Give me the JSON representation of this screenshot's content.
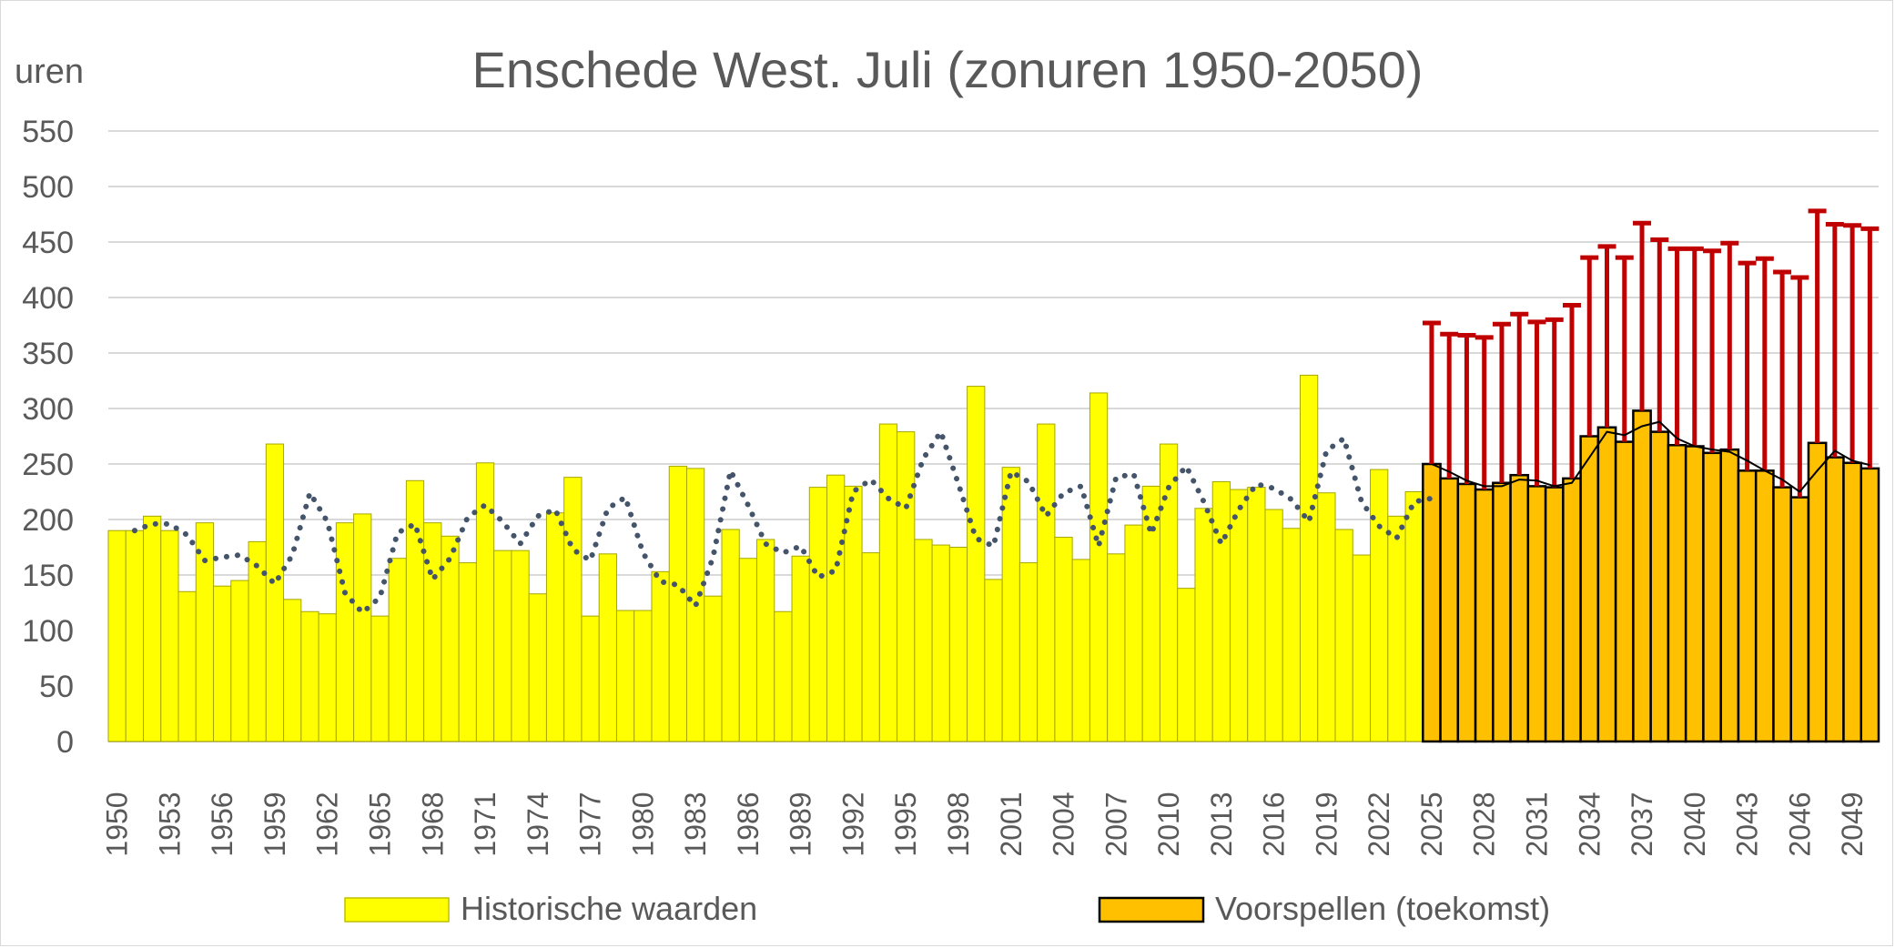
{
  "chart_data": {
    "type": "bar",
    "title": "Enschede West. Juli (zonuren 1950-2050)",
    "ylabel": "uren",
    "xlabel": "",
    "ylim": [
      0,
      550
    ],
    "yticks": [
      0,
      50,
      100,
      150,
      200,
      250,
      300,
      350,
      400,
      450,
      500,
      550
    ],
    "x_start": 1950,
    "x_tick_labels": [
      "1950",
      "1953",
      "1956",
      "1959",
      "1962",
      "1965",
      "1968",
      "1971",
      "1974",
      "1977",
      "1980",
      "1983",
      "1986",
      "1989",
      "1992",
      "1995",
      "1998",
      "2001",
      "2004",
      "2007",
      "2010",
      "2013",
      "2016",
      "2019",
      "2022",
      "2025",
      "2028",
      "2031",
      "2034",
      "2037",
      "2040",
      "2043",
      "2046",
      "2049"
    ],
    "grid": true,
    "legend_position": "bottom",
    "series": [
      {
        "name": "Historische waarden",
        "color": "#ffff00",
        "start_year": 1950,
        "values": [
          190,
          190,
          203,
          190,
          135,
          197,
          140,
          145,
          180,
          268,
          128,
          117,
          115,
          197,
          205,
          113,
          165,
          235,
          197,
          185,
          161,
          251,
          172,
          172,
          133,
          206,
          238,
          113,
          169,
          118,
          118,
          153,
          248,
          246,
          131,
          191,
          165,
          182,
          117,
          167,
          229,
          240,
          230,
          170,
          286,
          279,
          182,
          177,
          175,
          320,
          146,
          247,
          161,
          286,
          184,
          164,
          314,
          169,
          195,
          230,
          268,
          138,
          210,
          234,
          227,
          229,
          209,
          192,
          330,
          224,
          191,
          168,
          245,
          203,
          225
        ]
      },
      {
        "name": "Voorspellen (toekomst)",
        "color": "#ffc000",
        "start_year": 2025,
        "values": [
          250,
          237,
          232,
          227,
          233,
          240,
          230,
          229,
          237,
          275,
          283,
          270,
          298,
          279,
          267,
          266,
          260,
          263,
          244,
          244,
          229,
          220,
          269,
          256,
          251,
          246
        ],
        "upper": [
          377,
          367,
          366,
          364,
          376,
          385,
          378,
          380,
          393,
          436,
          446,
          436,
          467,
          452,
          444,
          444,
          442,
          449,
          431,
          435,
          423,
          418,
          478,
          466,
          465,
          462
        ]
      }
    ],
    "trend_dotted": {
      "color": "#44546a",
      "start_year": 1951,
      "values": [
        190,
        196,
        196,
        186,
        163,
        166,
        168,
        158,
        142,
        168,
        224,
        198,
        134,
        116,
        130,
        188,
        196,
        146,
        165,
        202,
        213,
        198,
        178,
        203,
        209,
        173,
        163,
        210,
        220,
        170,
        144,
        141,
        122,
        166,
        244,
        213,
        178,
        170,
        176,
        148,
        154,
        225,
        236,
        219,
        210,
        255,
        279,
        232,
        183,
        176,
        243,
        234,
        203,
        224,
        230,
        176,
        238,
        241,
        187,
        229,
        248,
        216,
        178,
        209,
        232,
        228,
        218,
        198,
        262,
        273,
        216,
        194,
        183,
        216,
        219
      ]
    },
    "trend_solid": {
      "color": "#000000",
      "start_year": 2025,
      "values": [
        250,
        243,
        235,
        230,
        230,
        236,
        235,
        230,
        233,
        256,
        279,
        276,
        284,
        288,
        273,
        266,
        263,
        261,
        253,
        244,
        236,
        225,
        244,
        262,
        253,
        249
      ]
    }
  }
}
